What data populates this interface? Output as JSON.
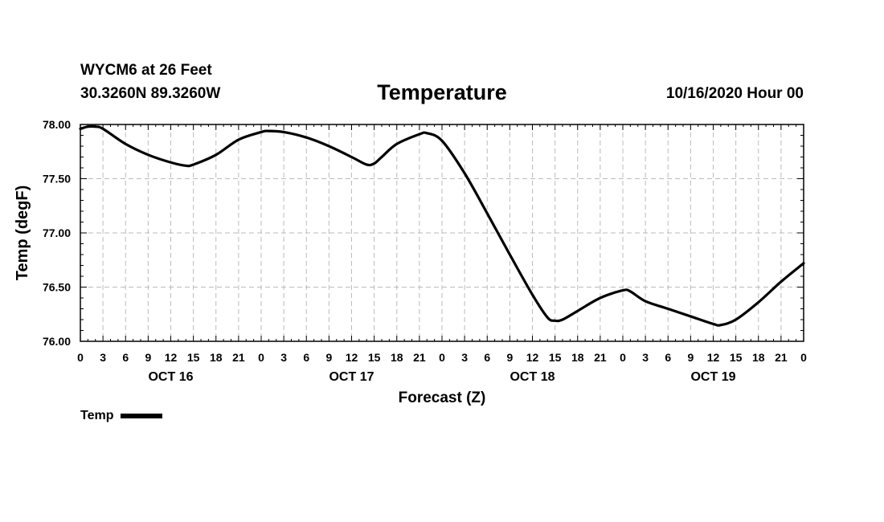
{
  "header": {
    "station": "WYCM6 at 26 Feet",
    "coords": "30.3260N 89.3260W",
    "runtime": "10/16/2020 Hour 00"
  },
  "legend": {
    "label": "Temp"
  },
  "chart_data": {
    "type": "line",
    "title": "Temperature",
    "xlabel": "Forecast (Z)",
    "ylabel": "Temp (degF)",
    "ylim": [
      76.0,
      78.0
    ],
    "xlim": [
      0,
      96
    ],
    "y_ticks": [
      76.0,
      76.5,
      77.0,
      77.5,
      78.0
    ],
    "y_tick_labels": [
      "76.00",
      "76.50",
      "77.00",
      "77.50",
      "78.00"
    ],
    "x_ticks": [
      0,
      3,
      6,
      9,
      12,
      15,
      18,
      21,
      24,
      27,
      30,
      33,
      36,
      39,
      42,
      45,
      48,
      51,
      54,
      57,
      60,
      63,
      66,
      69,
      72,
      75,
      78,
      81,
      84,
      87,
      90,
      93,
      96
    ],
    "x_tick_labels": [
      "0",
      "3",
      "6",
      "9",
      "12",
      "15",
      "18",
      "21",
      "0",
      "3",
      "6",
      "9",
      "12",
      "15",
      "18",
      "21",
      "0",
      "3",
      "6",
      "9",
      "12",
      "15",
      "18",
      "21",
      "0",
      "3",
      "6",
      "9",
      "12",
      "15",
      "18",
      "21",
      "0"
    ],
    "day_labels": [
      {
        "label": "OCT 16",
        "hour": 12
      },
      {
        "label": "OCT 17",
        "hour": 36
      },
      {
        "label": "OCT 18",
        "hour": 60
      },
      {
        "label": "OCT 19",
        "hour": 84
      }
    ],
    "grid": true,
    "legend_position": "bottom-left",
    "series": [
      {
        "name": "Temp",
        "color": "#000000",
        "x": [
          0,
          1,
          2,
          3,
          6,
          9,
          12,
          14,
          15,
          18,
          21,
          24,
          25,
          27,
          30,
          33,
          36,
          38,
          39,
          40,
          42,
          45,
          46,
          48,
          51,
          54,
          57,
          60,
          62,
          63,
          64,
          66,
          69,
          72,
          73,
          75,
          78,
          81,
          84,
          85,
          87,
          90,
          93,
          96
        ],
        "y": [
          77.96,
          77.98,
          77.98,
          77.96,
          77.82,
          77.72,
          77.65,
          77.62,
          77.63,
          77.72,
          77.86,
          77.93,
          77.94,
          77.93,
          77.88,
          77.8,
          77.7,
          77.63,
          77.64,
          77.7,
          77.82,
          77.91,
          77.92,
          77.85,
          77.55,
          77.18,
          76.8,
          76.43,
          76.22,
          76.19,
          76.2,
          76.28,
          76.4,
          76.47,
          76.46,
          76.37,
          76.3,
          76.23,
          76.16,
          76.15,
          76.2,
          76.36,
          76.55,
          76.72
        ]
      }
    ]
  }
}
